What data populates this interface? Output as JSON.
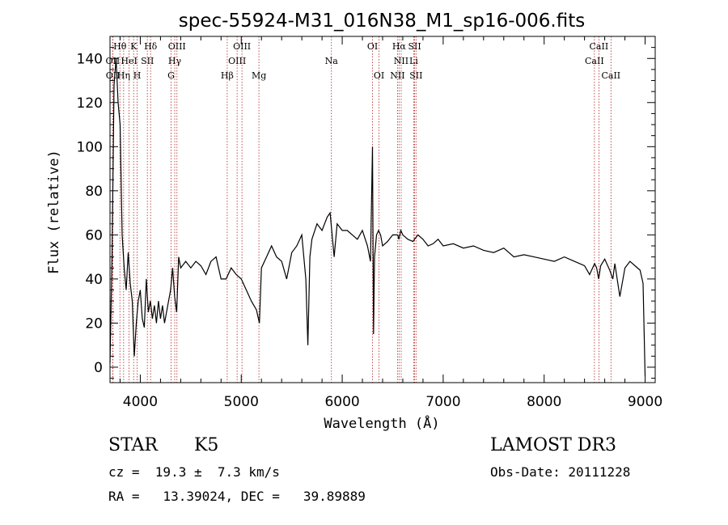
{
  "chart_data": {
    "type": "line",
    "title": "spec-55924-M31_016N38_M1_sp16-006.fits",
    "xlabel": "Wavelength (Å)",
    "ylabel": "Flux (relative)",
    "xlim": [
      3700,
      9100
    ],
    "ylim": [
      -7,
      150
    ],
    "xticks": [
      4000,
      5000,
      6000,
      7000,
      8000,
      9000
    ],
    "yticks": [
      0,
      20,
      40,
      60,
      80,
      100,
      120,
      140
    ],
    "series": [
      {
        "name": "flux",
        "x": [
          3700,
          3720,
          3740,
          3760,
          3780,
          3800,
          3820,
          3840,
          3860,
          3880,
          3900,
          3920,
          3940,
          3960,
          3980,
          4000,
          4020,
          4040,
          4060,
          4080,
          4100,
          4120,
          4140,
          4160,
          4180,
          4200,
          4220,
          4240,
          4260,
          4280,
          4300,
          4320,
          4340,
          4360,
          4380,
          4400,
          4450,
          4500,
          4550,
          4600,
          4650,
          4700,
          4750,
          4800,
          4850,
          4900,
          4950,
          5000,
          5050,
          5100,
          5150,
          5180,
          5200,
          5250,
          5300,
          5350,
          5400,
          5450,
          5500,
          5550,
          5600,
          5640,
          5660,
          5680,
          5700,
          5750,
          5800,
          5850,
          5880,
          5900,
          5920,
          5950,
          6000,
          6050,
          6100,
          6150,
          6200,
          6250,
          6280,
          6300,
          6310,
          6320,
          6340,
          6360,
          6380,
          6400,
          6450,
          6500,
          6550,
          6562,
          6580,
          6600,
          6650,
          6700,
          6750,
          6800,
          6850,
          6900,
          6950,
          7000,
          7100,
          7200,
          7300,
          7400,
          7500,
          7600,
          7700,
          7800,
          7900,
          8000,
          8100,
          8200,
          8300,
          8400,
          8450,
          8500,
          8520,
          8540,
          8560,
          8600,
          8650,
          8680,
          8700,
          8750,
          8800,
          8850,
          8900,
          8950,
          8980,
          9000
        ],
        "values": [
          2,
          50,
          128,
          140,
          120,
          110,
          60,
          45,
          35,
          52,
          38,
          30,
          5,
          20,
          30,
          35,
          22,
          18,
          40,
          25,
          30,
          22,
          28,
          20,
          30,
          22,
          28,
          20,
          25,
          30,
          35,
          45,
          32,
          25,
          50,
          45,
          48,
          45,
          48,
          46,
          42,
          48,
          50,
          40,
          40,
          45,
          42,
          40,
          35,
          30,
          26,
          20,
          45,
          50,
          55,
          50,
          48,
          40,
          52,
          55,
          60,
          40,
          10,
          50,
          58,
          65,
          62,
          68,
          70,
          60,
          50,
          65,
          62,
          62,
          60,
          58,
          62,
          55,
          48,
          100,
          15,
          50,
          60,
          62,
          60,
          55,
          57,
          60,
          60,
          58,
          62,
          60,
          58,
          57,
          60,
          58,
          55,
          56,
          58,
          55,
          56,
          54,
          55,
          53,
          52,
          54,
          50,
          51,
          50,
          49,
          48,
          50,
          48,
          46,
          42,
          47,
          45,
          40,
          46,
          49,
          44,
          40,
          47,
          32,
          45,
          48,
          46,
          44,
          38,
          -4
        ]
      }
    ],
    "annotations": {
      "lines_row1": [
        {
          "label": "Hθ",
          "x": 3798
        },
        {
          "label": "K",
          "x": 3934
        },
        {
          "label": "Hδ",
          "x": 4102
        },
        {
          "label": "OIII",
          "x": 4363
        },
        {
          "label": "OIII",
          "x": 5007
        },
        {
          "label": "OI",
          "x": 6300
        },
        {
          "label": "Hα",
          "x": 6563
        },
        {
          "label": "SII",
          "x": 6717
        },
        {
          "label": "CaII",
          "x": 8542
        }
      ],
      "lines_row2": [
        {
          "label": "OII",
          "x": 3727
        },
        {
          "label": "HeI",
          "x": 3889
        },
        {
          "label": "SII",
          "x": 4070
        },
        {
          "label": "Hγ",
          "x": 4341
        },
        {
          "label": "OIII",
          "x": 4959
        },
        {
          "label": "Na",
          "x": 5893
        },
        {
          "label": "NII",
          "x": 6584
        },
        {
          "label": "Li",
          "x": 6708
        },
        {
          "label": "CaII",
          "x": 8498
        }
      ],
      "lines_row3": [
        {
          "label": "OII",
          "x": 3729
        },
        {
          "label": "Hη",
          "x": 3835
        },
        {
          "label": "H",
          "x": 3969
        },
        {
          "label": "G",
          "x": 4305
        },
        {
          "label": "Hβ",
          "x": 4861
        },
        {
          "label": "Mg",
          "x": 5175
        },
        {
          "label": "OI",
          "x": 6364
        },
        {
          "label": "NII",
          "x": 6548
        },
        {
          "label": "SII",
          "x": 6731
        },
        {
          "label": "CaII",
          "x": 8662
        }
      ],
      "marker_lines_x": [
        3727,
        3729,
        3798,
        3835,
        3889,
        3934,
        3969,
        4070,
        4102,
        4305,
        4341,
        4363,
        4861,
        4959,
        5007,
        5175,
        5893,
        6300,
        6364,
        6548,
        6563,
        6584,
        6708,
        6717,
        6731,
        8498,
        8542,
        8662
      ]
    }
  },
  "info": {
    "object_class": "STAR",
    "subclass": "K5",
    "survey": "LAMOST DR3",
    "cz": "cz =  19.3 ±  7.3 km/s",
    "obs_date": "Obs-Date: 20111228",
    "coords": "RA =   13.39024, DEC =   39.89889"
  }
}
